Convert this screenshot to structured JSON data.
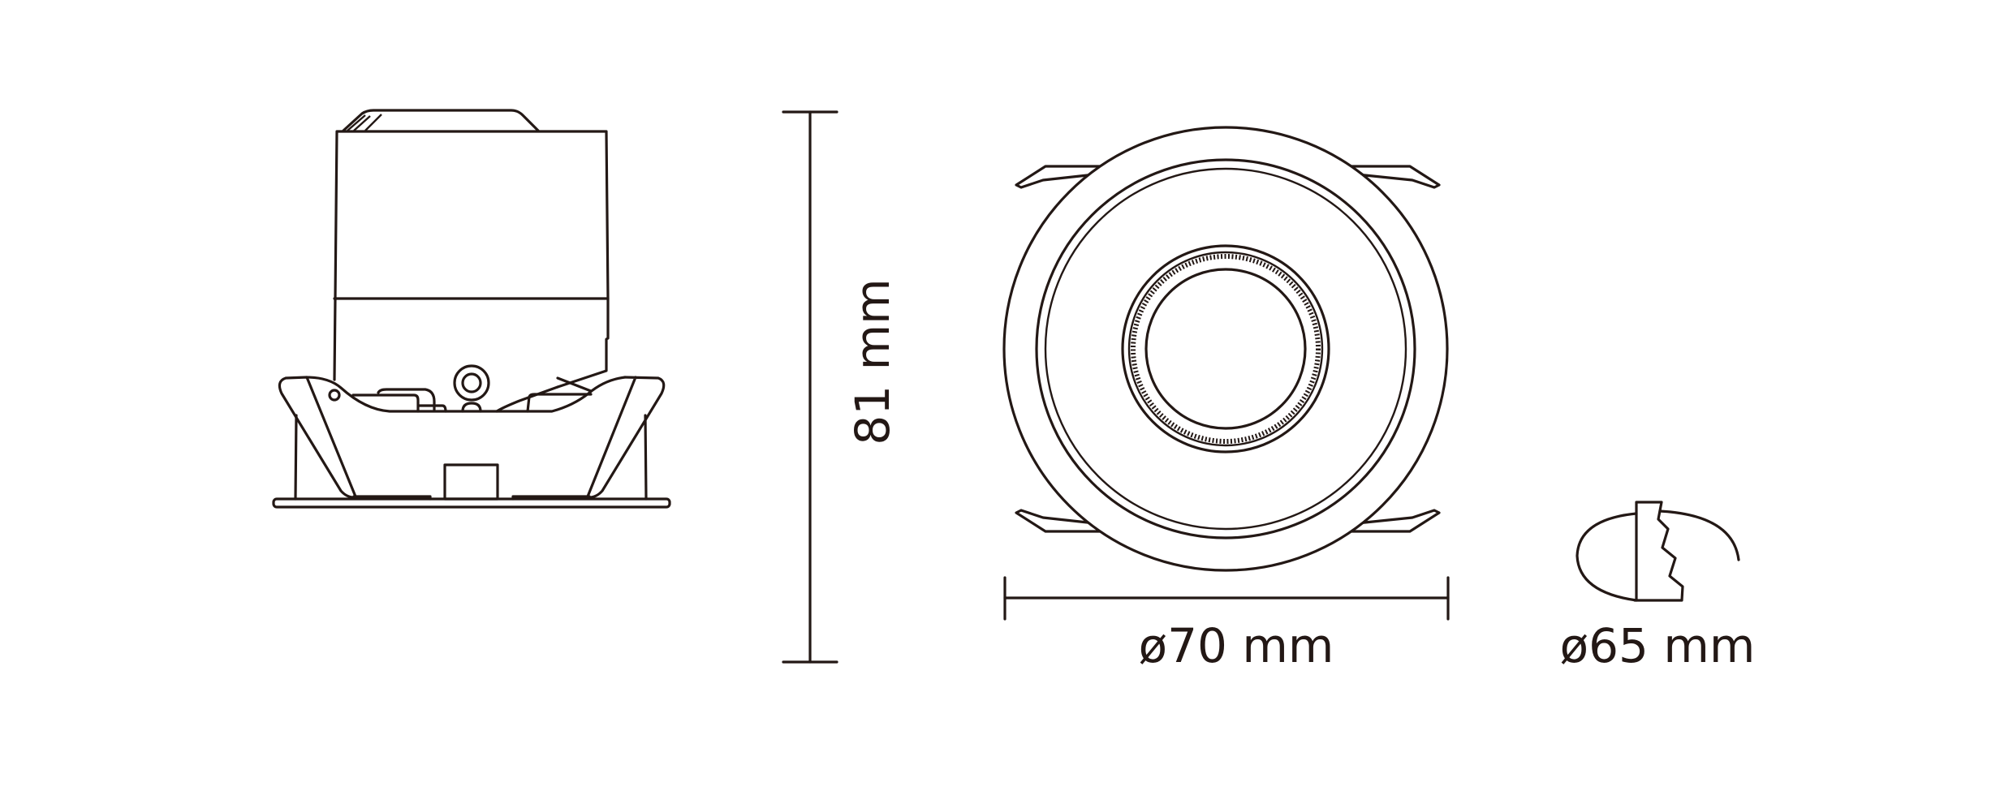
{
  "dimensions": {
    "height_label": "81 mm",
    "diameter_label": "ø70 mm",
    "cutout_label": "ø65 mm"
  },
  "colors": {
    "line": "#231815",
    "background": "#ffffff"
  },
  "views": [
    "side-view",
    "front-view",
    "cutout-icon"
  ]
}
